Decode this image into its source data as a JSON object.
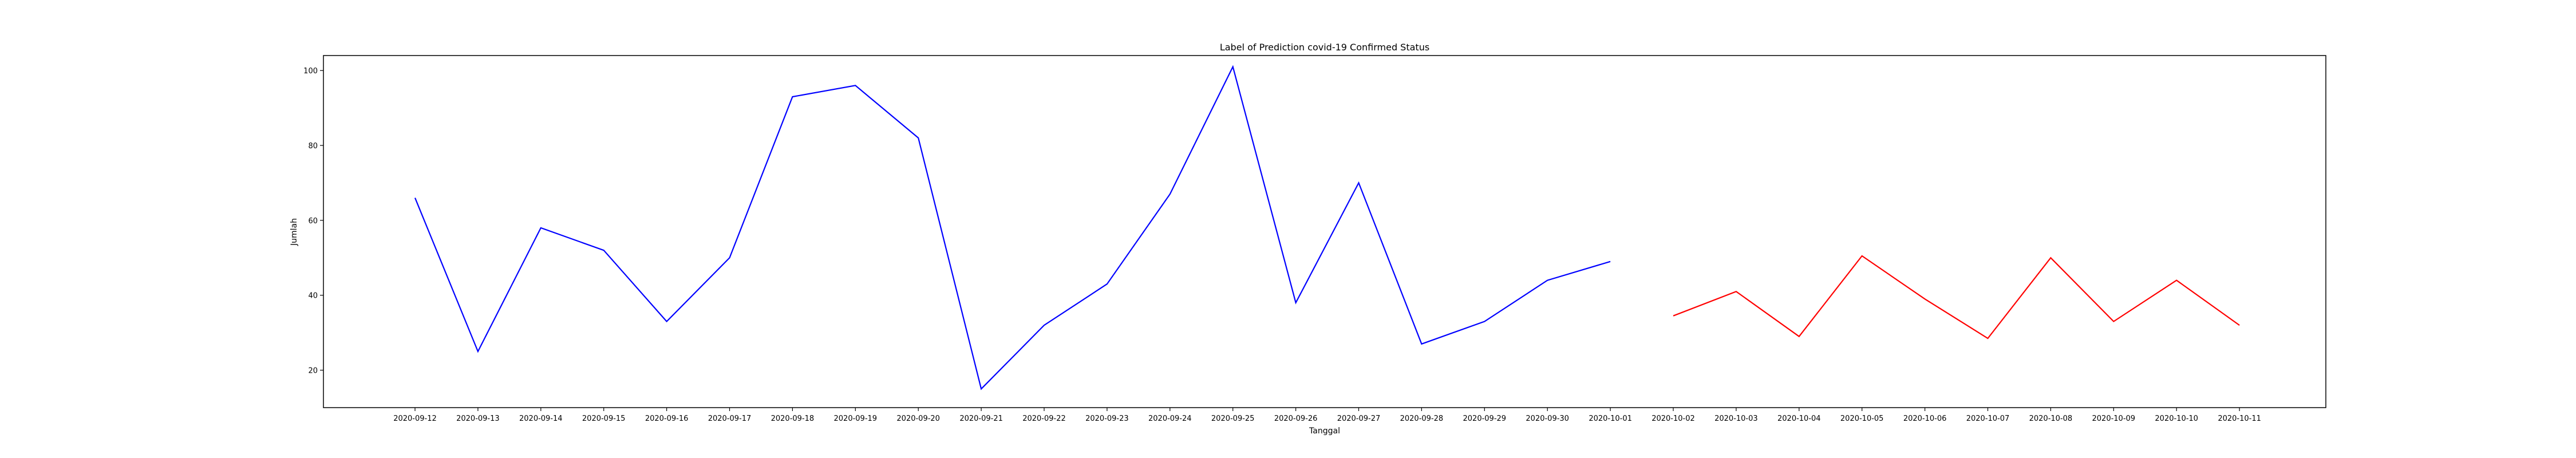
{
  "chart_data": {
    "type": "line",
    "title": "Label of Prediction covid-19 Confirmed Status",
    "xlabel": "Tanggal",
    "ylabel": "Jumlah",
    "ylim": [
      10,
      104
    ],
    "yticks": [
      20,
      40,
      60,
      80,
      100
    ],
    "grid": false,
    "categories": [
      "2020-09-12",
      "2020-09-13",
      "2020-09-14",
      "2020-09-15",
      "2020-09-16",
      "2020-09-17",
      "2020-09-18",
      "2020-09-19",
      "2020-09-20",
      "2020-09-21",
      "2020-09-22",
      "2020-09-23",
      "2020-09-24",
      "2020-09-25",
      "2020-09-26",
      "2020-09-27",
      "2020-09-28",
      "2020-09-29",
      "2020-09-30",
      "2020-10-01",
      "2020-10-02",
      "2020-10-03",
      "2020-10-04",
      "2020-10-05",
      "2020-10-06",
      "2020-10-07",
      "2020-10-08",
      "2020-10-09",
      "2020-10-10",
      "2020-10-11"
    ],
    "series": [
      {
        "color": "#0000ff",
        "x": [
          "2020-09-12",
          "2020-09-13",
          "2020-09-14",
          "2020-09-15",
          "2020-09-16",
          "2020-09-17",
          "2020-09-18",
          "2020-09-19",
          "2020-09-20",
          "2020-09-21",
          "2020-09-22",
          "2020-09-23",
          "2020-09-24",
          "2020-09-25",
          "2020-09-26",
          "2020-09-27",
          "2020-09-28",
          "2020-09-29",
          "2020-09-30",
          "2020-10-01"
        ],
        "values": [
          66,
          25,
          58,
          52,
          33,
          50,
          93,
          96,
          82,
          15,
          32,
          43,
          67,
          101,
          38,
          70,
          27,
          33,
          44,
          49
        ]
      },
      {
        "color": "#ff0000",
        "x": [
          "2020-10-02",
          "2020-10-03",
          "2020-10-04",
          "2020-10-05",
          "2020-10-06",
          "2020-10-07",
          "2020-10-08",
          "2020-10-09",
          "2020-10-10",
          "2020-10-11"
        ],
        "values": [
          34.5,
          41,
          29,
          50.5,
          39,
          28.5,
          50,
          33,
          44,
          32
        ]
      }
    ]
  }
}
